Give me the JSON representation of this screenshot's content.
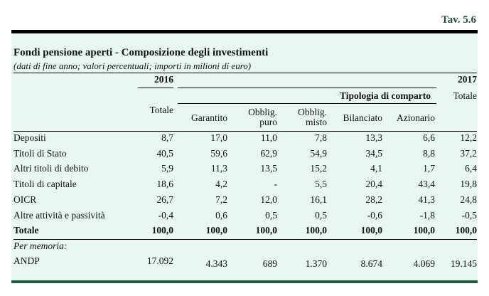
{
  "table_number": "Tav. 5.6",
  "title": "Fondi pensione aperti - Composizione degli investimenti",
  "subtitle": "(dati di fine anno; valori percentuali; importi in milioni di euro)",
  "header": {
    "year1": "2016",
    "year2": "2017",
    "group": "Tipologia di comparto",
    "total1": "Totale",
    "total2": "Totale",
    "columns": [
      "Garantito",
      "Obblig.",
      "puro",
      "Obblig.",
      "misto",
      "Bilanciato",
      "Azionario"
    ]
  },
  "rows": [
    {
      "label": "Depositi",
      "values": [
        "8,7",
        "17,0",
        "11,0",
        "7,8",
        "13,3",
        "6,6",
        "12,2"
      ]
    },
    {
      "label": "Titoli di Stato",
      "values": [
        "40,5",
        "59,6",
        "62,9",
        "54,9",
        "34,5",
        "8,8",
        "37,2"
      ]
    },
    {
      "label": "Altri titoli di debito",
      "values": [
        "5,9",
        "11,3",
        "13,5",
        "15,2",
        "4,1",
        "1,7",
        "6,4"
      ]
    },
    {
      "label": "Titoli di capitale",
      "values": [
        "18,6",
        "4,2",
        "-",
        "5,5",
        "20,4",
        "43,4",
        "19,8"
      ]
    },
    {
      "label": "OICR",
      "values": [
        "26,7",
        "7,2",
        "12,0",
        "16,1",
        "28,2",
        "41,3",
        "24,8"
      ]
    },
    {
      "label": "Altre attività e passività",
      "values": [
        "-0,4",
        "0,6",
        "0,5",
        "0,5",
        "-0,6",
        "-1,8",
        "-0,5"
      ]
    },
    {
      "label": "Totale",
      "values": [
        "100,0",
        "100,0",
        "100,0",
        "100,0",
        "100,0",
        "100,0",
        "100,0"
      ]
    }
  ],
  "memo_label": "Per memoria:",
  "andp": {
    "label": "ANDP",
    "values": [
      "17.092",
      "4.343",
      "689",
      "1.370",
      "8.674",
      "4.069",
      "19.145"
    ]
  }
}
